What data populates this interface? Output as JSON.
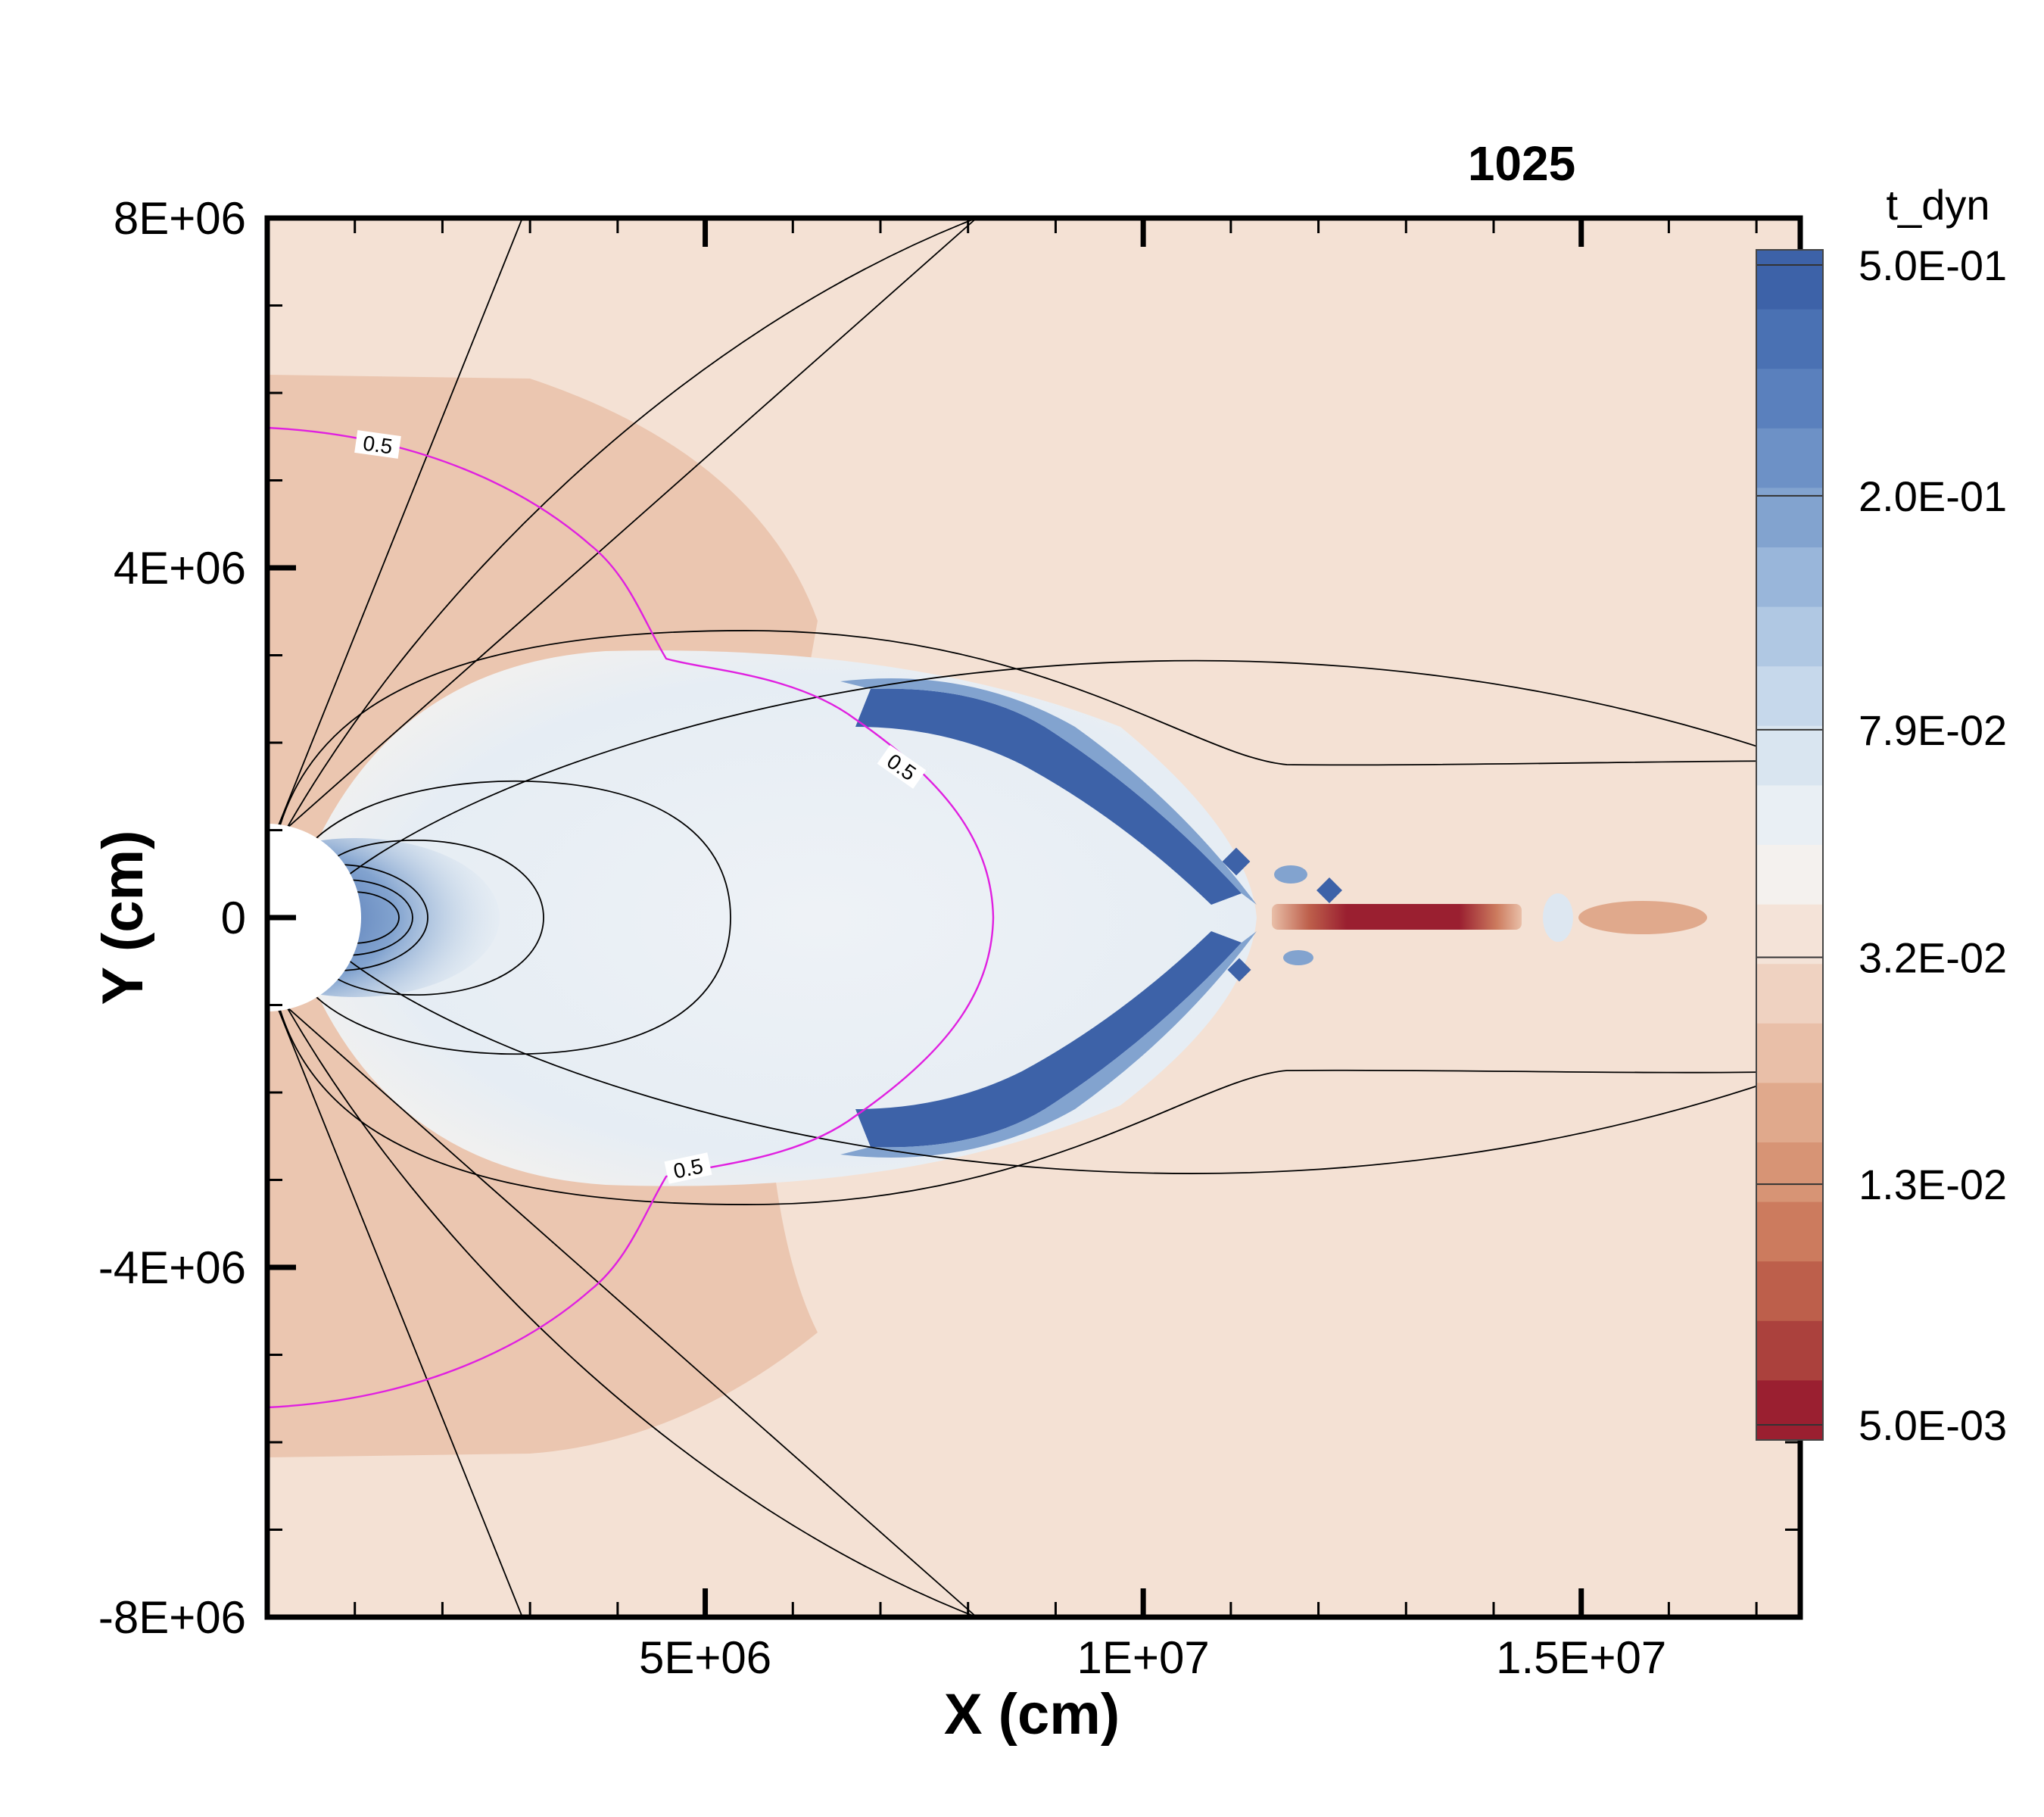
{
  "chart_data": {
    "type": "heatmap",
    "title": "1025",
    "xlabel": "X (cm)",
    "ylabel": "Y (cm)",
    "xlim": [
      0,
      17500000
    ],
    "ylim": [
      -8000000,
      8000000
    ],
    "x_ticks": [
      {
        "value": 5000000,
        "label": "5E+06"
      },
      {
        "value": 10000000,
        "label": "1E+07"
      },
      {
        "value": 15000000,
        "label": "1.5E+07"
      }
    ],
    "y_ticks": [
      {
        "value": 8000000,
        "label": "8E+06"
      },
      {
        "value": 4000000,
        "label": "4E+06"
      },
      {
        "value": 0,
        "label": "0"
      },
      {
        "value": -4000000,
        "label": "-4E+06"
      },
      {
        "value": -8000000,
        "label": "-8E+06"
      }
    ],
    "colorbar": {
      "title": "t_dyn",
      "scale": "log",
      "range": [
        0.005,
        0.5
      ],
      "labels": [
        {
          "value": 0.5,
          "label": "5.0E-01"
        },
        {
          "value": 0.2,
          "label": "2.0E-01"
        },
        {
          "value": 0.079,
          "label": "7.9E-02"
        },
        {
          "value": 0.032,
          "label": "3.2E-02"
        },
        {
          "value": 0.013,
          "label": "1.3E-02"
        },
        {
          "value": 0.005,
          "label": "5.0E-03"
        }
      ],
      "colors": [
        "#3d62a8",
        "#4a71b3",
        "#5a80bd",
        "#6d91c6",
        "#82a3cf",
        "#99b6da",
        "#b0c8e3",
        "#c6d8eb",
        "#d9e5f0",
        "#e9eff4",
        "#f4f1ee",
        "#f4e3d8",
        "#efd2c1",
        "#e9bfa8",
        "#e0a98c",
        "#d79475",
        "#cc7b5e",
        "#bd5f4b",
        "#ab413d",
        "#9a1f30"
      ]
    },
    "contour_labels": [
      "0.5",
      "0.5",
      "0.5"
    ],
    "colors": {
      "background_field": "#f4e1d4",
      "envelope": "#ebc6b0",
      "bubble": "#edf1f5",
      "shock": "#3d62a8",
      "jet": "#9a1f30",
      "magenta_contour": "#e020e0"
    }
  }
}
